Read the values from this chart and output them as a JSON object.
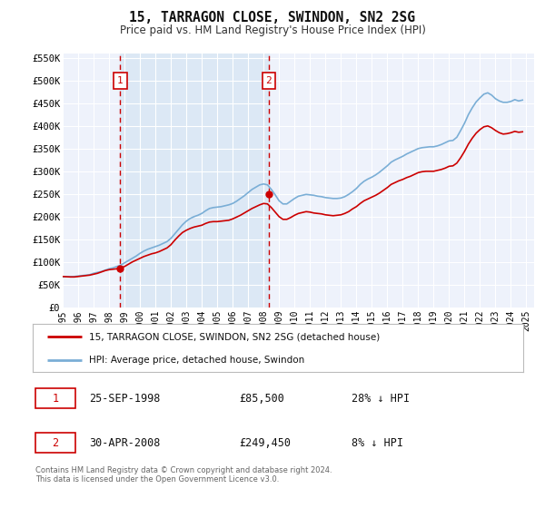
{
  "title": "15, TARRAGON CLOSE, SWINDON, SN2 2SG",
  "subtitle": "Price paid vs. HM Land Registry's House Price Index (HPI)",
  "legend_label_red": "15, TARRAGON CLOSE, SWINDON, SN2 2SG (detached house)",
  "legend_label_blue": "HPI: Average price, detached house, Swindon",
  "sale1_label": "1",
  "sale1_date": "25-SEP-1998",
  "sale1_price": "£85,500",
  "sale1_hpi": "28% ↓ HPI",
  "sale1_year": 1998.73,
  "sale1_value": 85500,
  "sale2_label": "2",
  "sale2_date": "30-APR-2008",
  "sale2_price": "£249,450",
  "sale2_hpi": "8% ↓ HPI",
  "sale2_year": 2008.33,
  "sale2_value": 249450,
  "footnote1": "Contains HM Land Registry data © Crown copyright and database right 2024.",
  "footnote2": "This data is licensed under the Open Government Licence v3.0.",
  "background_color": "#ffffff",
  "plot_bg_color": "#eef2fb",
  "shade_color": "#dce8f5",
  "grid_color": "#ffffff",
  "red_line_color": "#cc0000",
  "blue_line_color": "#7aaed6",
  "ylim": [
    0,
    560000
  ],
  "xlim_start": 1995.0,
  "xlim_end": 2025.5,
  "yticks": [
    0,
    50000,
    100000,
    150000,
    200000,
    250000,
    300000,
    350000,
    400000,
    450000,
    500000,
    550000
  ],
  "ytick_labels": [
    "£0",
    "£50K",
    "£100K",
    "£150K",
    "£200K",
    "£250K",
    "£300K",
    "£350K",
    "£400K",
    "£450K",
    "£500K",
    "£550K"
  ],
  "xticks": [
    1995,
    1996,
    1997,
    1998,
    1999,
    2000,
    2001,
    2002,
    2003,
    2004,
    2005,
    2006,
    2007,
    2008,
    2009,
    2010,
    2011,
    2012,
    2013,
    2014,
    2015,
    2016,
    2017,
    2018,
    2019,
    2020,
    2021,
    2022,
    2023,
    2024,
    2025
  ],
  "hpi_data": [
    [
      1995.0,
      67000
    ],
    [
      1995.25,
      67500
    ],
    [
      1995.5,
      67800
    ],
    [
      1995.75,
      68000
    ],
    [
      1996.0,
      69000
    ],
    [
      1996.25,
      70000
    ],
    [
      1996.5,
      71000
    ],
    [
      1996.75,
      72000
    ],
    [
      1997.0,
      75000
    ],
    [
      1997.25,
      77000
    ],
    [
      1997.5,
      79000
    ],
    [
      1997.75,
      82000
    ],
    [
      1998.0,
      85000
    ],
    [
      1998.25,
      87000
    ],
    [
      1998.5,
      90000
    ],
    [
      1998.75,
      93000
    ],
    [
      1999.0,
      98000
    ],
    [
      1999.25,
      103000
    ],
    [
      1999.5,
      108000
    ],
    [
      1999.75,
      113000
    ],
    [
      2000.0,
      119000
    ],
    [
      2000.25,
      124000
    ],
    [
      2000.5,
      128000
    ],
    [
      2000.75,
      131000
    ],
    [
      2001.0,
      134000
    ],
    [
      2001.25,
      137000
    ],
    [
      2001.5,
      141000
    ],
    [
      2001.75,
      145000
    ],
    [
      2002.0,
      152000
    ],
    [
      2002.25,
      162000
    ],
    [
      2002.5,
      172000
    ],
    [
      2002.75,
      182000
    ],
    [
      2003.0,
      190000
    ],
    [
      2003.25,
      196000
    ],
    [
      2003.5,
      200000
    ],
    [
      2003.75,
      203000
    ],
    [
      2004.0,
      207000
    ],
    [
      2004.25,
      213000
    ],
    [
      2004.5,
      218000
    ],
    [
      2004.75,
      220000
    ],
    [
      2005.0,
      221000
    ],
    [
      2005.25,
      222000
    ],
    [
      2005.5,
      224000
    ],
    [
      2005.75,
      226000
    ],
    [
      2006.0,
      229000
    ],
    [
      2006.25,
      234000
    ],
    [
      2006.5,
      240000
    ],
    [
      2006.75,
      246000
    ],
    [
      2007.0,
      253000
    ],
    [
      2007.25,
      260000
    ],
    [
      2007.5,
      265000
    ],
    [
      2007.75,
      270000
    ],
    [
      2008.0,
      272000
    ],
    [
      2008.25,
      270000
    ],
    [
      2008.5,
      260000
    ],
    [
      2008.75,
      248000
    ],
    [
      2009.0,
      235000
    ],
    [
      2009.25,
      228000
    ],
    [
      2009.5,
      228000
    ],
    [
      2009.75,
      234000
    ],
    [
      2010.0,
      240000
    ],
    [
      2010.25,
      245000
    ],
    [
      2010.5,
      247000
    ],
    [
      2010.75,
      249000
    ],
    [
      2011.0,
      248000
    ],
    [
      2011.25,
      247000
    ],
    [
      2011.5,
      245000
    ],
    [
      2011.75,
      244000
    ],
    [
      2012.0,
      242000
    ],
    [
      2012.25,
      241000
    ],
    [
      2012.5,
      240000
    ],
    [
      2012.75,
      240000
    ],
    [
      2013.0,
      241000
    ],
    [
      2013.25,
      244000
    ],
    [
      2013.5,
      249000
    ],
    [
      2013.75,
      255000
    ],
    [
      2014.0,
      262000
    ],
    [
      2014.25,
      271000
    ],
    [
      2014.5,
      278000
    ],
    [
      2014.75,
      283000
    ],
    [
      2015.0,
      287000
    ],
    [
      2015.25,
      292000
    ],
    [
      2015.5,
      298000
    ],
    [
      2015.75,
      305000
    ],
    [
      2016.0,
      312000
    ],
    [
      2016.25,
      320000
    ],
    [
      2016.5,
      325000
    ],
    [
      2016.75,
      329000
    ],
    [
      2017.0,
      333000
    ],
    [
      2017.25,
      338000
    ],
    [
      2017.5,
      342000
    ],
    [
      2017.75,
      346000
    ],
    [
      2018.0,
      350000
    ],
    [
      2018.25,
      352000
    ],
    [
      2018.5,
      353000
    ],
    [
      2018.75,
      354000
    ],
    [
      2019.0,
      354000
    ],
    [
      2019.25,
      356000
    ],
    [
      2019.5,
      359000
    ],
    [
      2019.75,
      363000
    ],
    [
      2020.0,
      367000
    ],
    [
      2020.25,
      368000
    ],
    [
      2020.5,
      375000
    ],
    [
      2020.75,
      390000
    ],
    [
      2021.0,
      406000
    ],
    [
      2021.25,
      425000
    ],
    [
      2021.5,
      440000
    ],
    [
      2021.75,
      453000
    ],
    [
      2022.0,
      462000
    ],
    [
      2022.25,
      470000
    ],
    [
      2022.5,
      473000
    ],
    [
      2022.75,
      468000
    ],
    [
      2023.0,
      460000
    ],
    [
      2023.25,
      455000
    ],
    [
      2023.5,
      452000
    ],
    [
      2023.75,
      452000
    ],
    [
      2024.0,
      454000
    ],
    [
      2024.25,
      458000
    ],
    [
      2024.5,
      455000
    ],
    [
      2024.75,
      457000
    ]
  ],
  "red_data": [
    [
      1995.0,
      68000
    ],
    [
      1995.25,
      67500
    ],
    [
      1995.5,
      67000
    ],
    [
      1995.75,
      67000
    ],
    [
      1996.0,
      68000
    ],
    [
      1996.25,
      69000
    ],
    [
      1996.5,
      70000
    ],
    [
      1996.75,
      71000
    ],
    [
      1997.0,
      73000
    ],
    [
      1997.25,
      75000
    ],
    [
      1997.5,
      78000
    ],
    [
      1997.75,
      81000
    ],
    [
      1998.0,
      83000
    ],
    [
      1998.25,
      84000
    ],
    [
      1998.5,
      85000
    ],
    [
      1998.75,
      87000
    ],
    [
      1999.0,
      90000
    ],
    [
      1999.25,
      95000
    ],
    [
      1999.5,
      100000
    ],
    [
      1999.75,
      104000
    ],
    [
      2000.0,
      108000
    ],
    [
      2000.25,
      112000
    ],
    [
      2000.5,
      115000
    ],
    [
      2000.75,
      118000
    ],
    [
      2001.0,
      120000
    ],
    [
      2001.25,
      123000
    ],
    [
      2001.5,
      127000
    ],
    [
      2001.75,
      131000
    ],
    [
      2002.0,
      138000
    ],
    [
      2002.25,
      148000
    ],
    [
      2002.5,
      157000
    ],
    [
      2002.75,
      165000
    ],
    [
      2003.0,
      170000
    ],
    [
      2003.25,
      174000
    ],
    [
      2003.5,
      177000
    ],
    [
      2003.75,
      179000
    ],
    [
      2004.0,
      181000
    ],
    [
      2004.25,
      185000
    ],
    [
      2004.5,
      188000
    ],
    [
      2004.75,
      189000
    ],
    [
      2005.0,
      189000
    ],
    [
      2005.25,
      190000
    ],
    [
      2005.5,
      191000
    ],
    [
      2005.75,
      192000
    ],
    [
      2006.0,
      195000
    ],
    [
      2006.25,
      199000
    ],
    [
      2006.5,
      203000
    ],
    [
      2006.75,
      208000
    ],
    [
      2007.0,
      213000
    ],
    [
      2007.25,
      218000
    ],
    [
      2007.5,
      222000
    ],
    [
      2007.75,
      226000
    ],
    [
      2008.0,
      229000
    ],
    [
      2008.25,
      228000
    ],
    [
      2008.5,
      220000
    ],
    [
      2008.75,
      210000
    ],
    [
      2009.0,
      200000
    ],
    [
      2009.25,
      194000
    ],
    [
      2009.5,
      194000
    ],
    [
      2009.75,
      198000
    ],
    [
      2010.0,
      203000
    ],
    [
      2010.25,
      207000
    ],
    [
      2010.5,
      209000
    ],
    [
      2010.75,
      211000
    ],
    [
      2011.0,
      210000
    ],
    [
      2011.25,
      208000
    ],
    [
      2011.5,
      207000
    ],
    [
      2011.75,
      206000
    ],
    [
      2012.0,
      204000
    ],
    [
      2012.25,
      203000
    ],
    [
      2012.5,
      202000
    ],
    [
      2012.75,
      203000
    ],
    [
      2013.0,
      204000
    ],
    [
      2013.25,
      207000
    ],
    [
      2013.5,
      211000
    ],
    [
      2013.75,
      217000
    ],
    [
      2014.0,
      222000
    ],
    [
      2014.25,
      229000
    ],
    [
      2014.5,
      235000
    ],
    [
      2014.75,
      239000
    ],
    [
      2015.0,
      243000
    ],
    [
      2015.25,
      247000
    ],
    [
      2015.5,
      252000
    ],
    [
      2015.75,
      258000
    ],
    [
      2016.0,
      264000
    ],
    [
      2016.25,
      271000
    ],
    [
      2016.5,
      275000
    ],
    [
      2016.75,
      279000
    ],
    [
      2017.0,
      282000
    ],
    [
      2017.25,
      286000
    ],
    [
      2017.5,
      289000
    ],
    [
      2017.75,
      293000
    ],
    [
      2018.0,
      297000
    ],
    [
      2018.25,
      299000
    ],
    [
      2018.5,
      300000
    ],
    [
      2018.75,
      300000
    ],
    [
      2019.0,
      300000
    ],
    [
      2019.25,
      302000
    ],
    [
      2019.5,
      304000
    ],
    [
      2019.75,
      307000
    ],
    [
      2020.0,
      311000
    ],
    [
      2020.25,
      312000
    ],
    [
      2020.5,
      318000
    ],
    [
      2020.75,
      330000
    ],
    [
      2021.0,
      344000
    ],
    [
      2021.25,
      360000
    ],
    [
      2021.5,
      373000
    ],
    [
      2021.75,
      384000
    ],
    [
      2022.0,
      392000
    ],
    [
      2022.25,
      398000
    ],
    [
      2022.5,
      400000
    ],
    [
      2022.75,
      396000
    ],
    [
      2023.0,
      390000
    ],
    [
      2023.25,
      385000
    ],
    [
      2023.5,
      382000
    ],
    [
      2023.75,
      383000
    ],
    [
      2024.0,
      385000
    ],
    [
      2024.25,
      388000
    ],
    [
      2024.5,
      386000
    ],
    [
      2024.75,
      387000
    ]
  ]
}
